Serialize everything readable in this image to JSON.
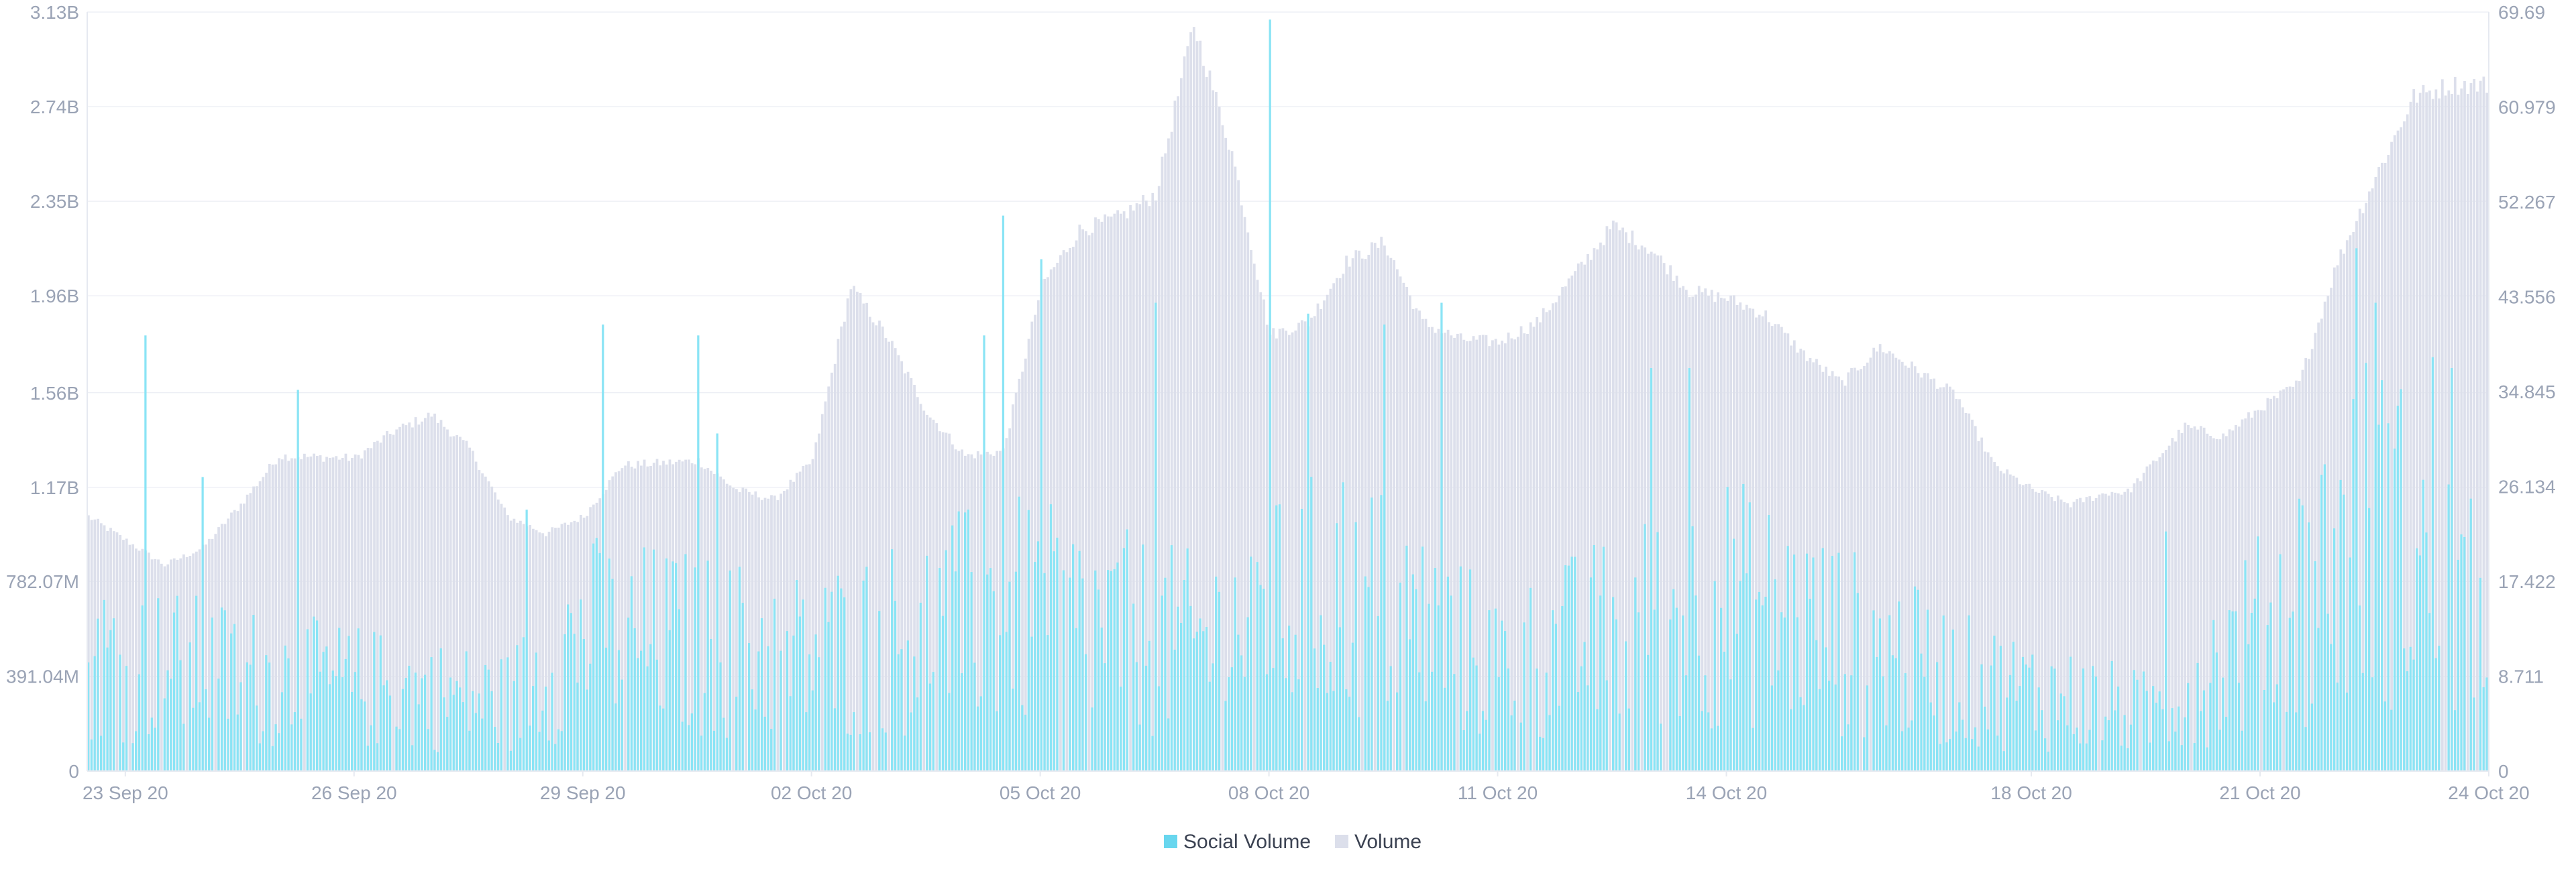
{
  "colors": {
    "volume": "#dcdfeb",
    "social_volume": "#8ae4f5",
    "social_volume_legend": "#68d6ee",
    "axis_text": "#9aa3b5",
    "gridline": "#e6e9f0"
  },
  "chart_data": {
    "type": "bar",
    "grid": true,
    "legend_position": "bottom-center",
    "x_range": [
      "2020-09-22T12:00",
      "2020-10-24T00:00"
    ],
    "y_left": {
      "series": "Volume",
      "min": 0,
      "max": 3130000000,
      "ticks": [
        0,
        391040000,
        782070000,
        1170000000,
        1560000000,
        1960000000,
        2350000000,
        2740000000,
        3130000000
      ],
      "tick_labels": [
        "0",
        "391.04M",
        "782.07M",
        "1.17B",
        "1.56B",
        "1.96B",
        "2.35B",
        "2.74B",
        "3.13B"
      ]
    },
    "y_right": {
      "series": "Social Volume",
      "min": 0,
      "max": 69.69,
      "ticks": [
        0,
        8.711,
        17.422,
        26.134,
        34.845,
        43.556,
        52.267,
        60.979,
        69.69
      ],
      "tick_labels": [
        "0",
        "8.711",
        "17.422",
        "26.134",
        "34.845",
        "43.556",
        "52.267",
        "60.979",
        "69.69"
      ]
    },
    "x_ticks": [
      {
        "date": "2020-09-23",
        "label": "23 Sep 20"
      },
      {
        "date": "2020-09-26",
        "label": "26 Sep 20"
      },
      {
        "date": "2020-09-29",
        "label": "29 Sep 20"
      },
      {
        "date": "2020-10-02",
        "label": "02 Oct 20"
      },
      {
        "date": "2020-10-05",
        "label": "05 Oct 20"
      },
      {
        "date": "2020-10-08",
        "label": "08 Oct 20"
      },
      {
        "date": "2020-10-11",
        "label": "11 Oct 20"
      },
      {
        "date": "2020-10-14",
        "label": "14 Oct 20"
      },
      {
        "date": "2020-10-18",
        "label": "18 Oct 20"
      },
      {
        "date": "2020-10-21",
        "label": "21 Oct 20"
      },
      {
        "date": "2020-10-24",
        "label": "24 Oct 20"
      }
    ],
    "volume_keypoints": [
      [
        "2020-09-22T12:00",
        1050000000
      ],
      [
        "2020-09-23T12:00",
        850000000
      ],
      [
        "2020-09-24T00:00",
        920000000
      ],
      [
        "2020-09-24T12:00",
        1100000000
      ],
      [
        "2020-09-25T00:00",
        1300000000
      ],
      [
        "2020-09-26T00:00",
        1290000000
      ],
      [
        "2020-09-26T12:00",
        1400000000
      ],
      [
        "2020-09-27T00:00",
        1470000000
      ],
      [
        "2020-09-27T12:00",
        1330000000
      ],
      [
        "2020-09-28T00:00",
        1050000000
      ],
      [
        "2020-09-28T12:00",
        980000000
      ],
      [
        "2020-09-29T00:00",
        1050000000
      ],
      [
        "2020-09-29T12:00",
        1260000000
      ],
      [
        "2020-09-30T12:00",
        1280000000
      ],
      [
        "2020-10-01T00:00",
        1160000000
      ],
      [
        "2020-10-01T12:00",
        1120000000
      ],
      [
        "2020-10-02T00:00",
        1280000000
      ],
      [
        "2020-10-02T12:00",
        2000000000
      ],
      [
        "2020-10-03T00:00",
        1780000000
      ],
      [
        "2020-10-03T12:00",
        1480000000
      ],
      [
        "2020-10-04T00:00",
        1300000000
      ],
      [
        "2020-10-04T12:00",
        1320000000
      ],
      [
        "2020-10-05T00:00",
        2000000000
      ],
      [
        "2020-10-05T12:00",
        2230000000
      ],
      [
        "2020-10-06T00:00",
        2280000000
      ],
      [
        "2020-10-06T12:00",
        2380000000
      ],
      [
        "2020-10-07T00:00",
        3080000000
      ],
      [
        "2020-10-07T12:00",
        2550000000
      ],
      [
        "2020-10-08T00:00",
        1800000000
      ],
      [
        "2020-10-08T12:00",
        1850000000
      ],
      [
        "2020-10-09T00:00",
        2100000000
      ],
      [
        "2020-10-09T12:00",
        2180000000
      ],
      [
        "2020-10-10T00:00",
        1850000000
      ],
      [
        "2020-10-10T12:00",
        1780000000
      ],
      [
        "2020-10-11T00:00",
        1770000000
      ],
      [
        "2020-10-11T12:00",
        1850000000
      ],
      [
        "2020-10-12T00:00",
        2050000000
      ],
      [
        "2020-10-12T12:00",
        2250000000
      ],
      [
        "2020-10-13T00:00",
        2150000000
      ],
      [
        "2020-10-13T12:00",
        1980000000
      ],
      [
        "2020-10-14T00:00",
        1950000000
      ],
      [
        "2020-10-14T12:00",
        1880000000
      ],
      [
        "2020-10-15T00:00",
        1720000000
      ],
      [
        "2020-10-15T12:00",
        1600000000
      ],
      [
        "2020-10-16T00:00",
        1750000000
      ],
      [
        "2020-10-16T12:00",
        1650000000
      ],
      [
        "2020-10-17T00:00",
        1550000000
      ],
      [
        "2020-10-17T12:00",
        1260000000
      ],
      [
        "2020-10-18T00:00",
        1160000000
      ],
      [
        "2020-10-18T12:00",
        1100000000
      ],
      [
        "2020-10-19T00:00",
        1150000000
      ],
      [
        "2020-10-19T06:00",
        1150000000
      ],
      [
        "2020-10-20T00:00",
        1420000000
      ],
      [
        "2020-10-20T12:00",
        1380000000
      ],
      [
        "2020-10-21T00:00",
        1500000000
      ],
      [
        "2020-10-21T12:00",
        1600000000
      ],
      [
        "2020-10-22T00:00",
        2100000000
      ],
      [
        "2020-10-22T12:00",
        2450000000
      ],
      [
        "2020-10-23T00:00",
        2780000000
      ],
      [
        "2020-10-23T12:00",
        2830000000
      ],
      [
        "2020-10-24T00:00",
        2830000000
      ]
    ],
    "social_volume_spikes": [
      [
        "2020-09-23T06:00",
        40
      ],
      [
        "2020-09-24T00:00",
        27
      ],
      [
        "2020-09-25T06:00",
        35
      ],
      [
        "2020-09-28T06:00",
        24
      ],
      [
        "2020-09-29T06:00",
        41
      ],
      [
        "2020-09-30T12:00",
        40
      ],
      [
        "2020-09-30T18:00",
        31
      ],
      [
        "2020-10-04T06:00",
        40
      ],
      [
        "2020-10-04T12:00",
        51
      ],
      [
        "2020-10-05T00:00",
        47
      ],
      [
        "2020-10-06T12:00",
        43
      ],
      [
        "2020-10-08T00:00",
        69
      ],
      [
        "2020-10-08T12:00",
        42
      ],
      [
        "2020-10-09T12:00",
        41
      ],
      [
        "2020-10-10T06:00",
        43
      ],
      [
        "2020-10-13T00:00",
        37
      ],
      [
        "2020-10-13T12:00",
        37
      ],
      [
        "2020-10-19T18:00",
        22
      ],
      [
        "2020-10-22T06:00",
        48
      ],
      [
        "2020-10-22T12:00",
        43
      ],
      [
        "2020-10-23T06:00",
        38
      ],
      [
        "2020-10-23T12:00",
        37
      ]
    ],
    "social_volume_baseline": [
      [
        "2020-09-22T12:00",
        10
      ],
      [
        "2020-09-25T00:00",
        8
      ],
      [
        "2020-09-28T00:00",
        6
      ],
      [
        "2020-09-29T00:00",
        12
      ],
      [
        "2020-10-02T00:00",
        10
      ],
      [
        "2020-10-04T12:00",
        14
      ],
      [
        "2020-10-07T00:00",
        11
      ],
      [
        "2020-10-09T00:00",
        16
      ],
      [
        "2020-10-11T00:00",
        9
      ],
      [
        "2020-10-14T00:00",
        15
      ],
      [
        "2020-10-17T00:00",
        8
      ],
      [
        "2020-10-19T12:00",
        5
      ],
      [
        "2020-10-21T00:00",
        12
      ],
      [
        "2020-10-22T12:00",
        22
      ],
      [
        "2020-10-24T00:00",
        12
      ]
    ],
    "legend": [
      {
        "name": "Social Volume",
        "color_key": "social_volume_legend"
      },
      {
        "name": "Volume",
        "color_key": "volume"
      }
    ]
  }
}
